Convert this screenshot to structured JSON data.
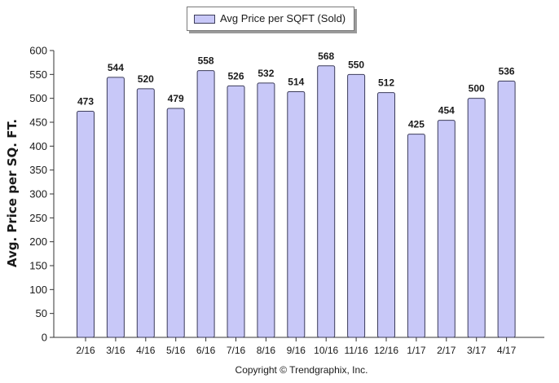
{
  "chart_data": {
    "type": "bar",
    "legend": {
      "label": "Avg Price per SQFT (Sold)",
      "placement": "top-center"
    },
    "ylabel": "Avg. Price per SQ. FT.",
    "xlabel": "",
    "ylim": [
      0,
      600
    ],
    "yticks": [
      0,
      50,
      100,
      150,
      200,
      250,
      300,
      350,
      400,
      450,
      500,
      550,
      600
    ],
    "categories": [
      "2/16",
      "3/16",
      "4/16",
      "5/16",
      "6/16",
      "7/16",
      "8/16",
      "9/16",
      "10/16",
      "11/16",
      "12/16",
      "1/17",
      "2/17",
      "3/17",
      "4/17"
    ],
    "values": [
      473,
      544,
      520,
      479,
      558,
      526,
      532,
      514,
      568,
      550,
      512,
      425,
      454,
      500,
      536
    ],
    "bar_color": "#c8c8f8",
    "bar_edge_color": "#3c3c5a",
    "grid": false,
    "data_labels": true
  },
  "footer": {
    "copyright": "Copyright © Trendgraphix, Inc."
  }
}
